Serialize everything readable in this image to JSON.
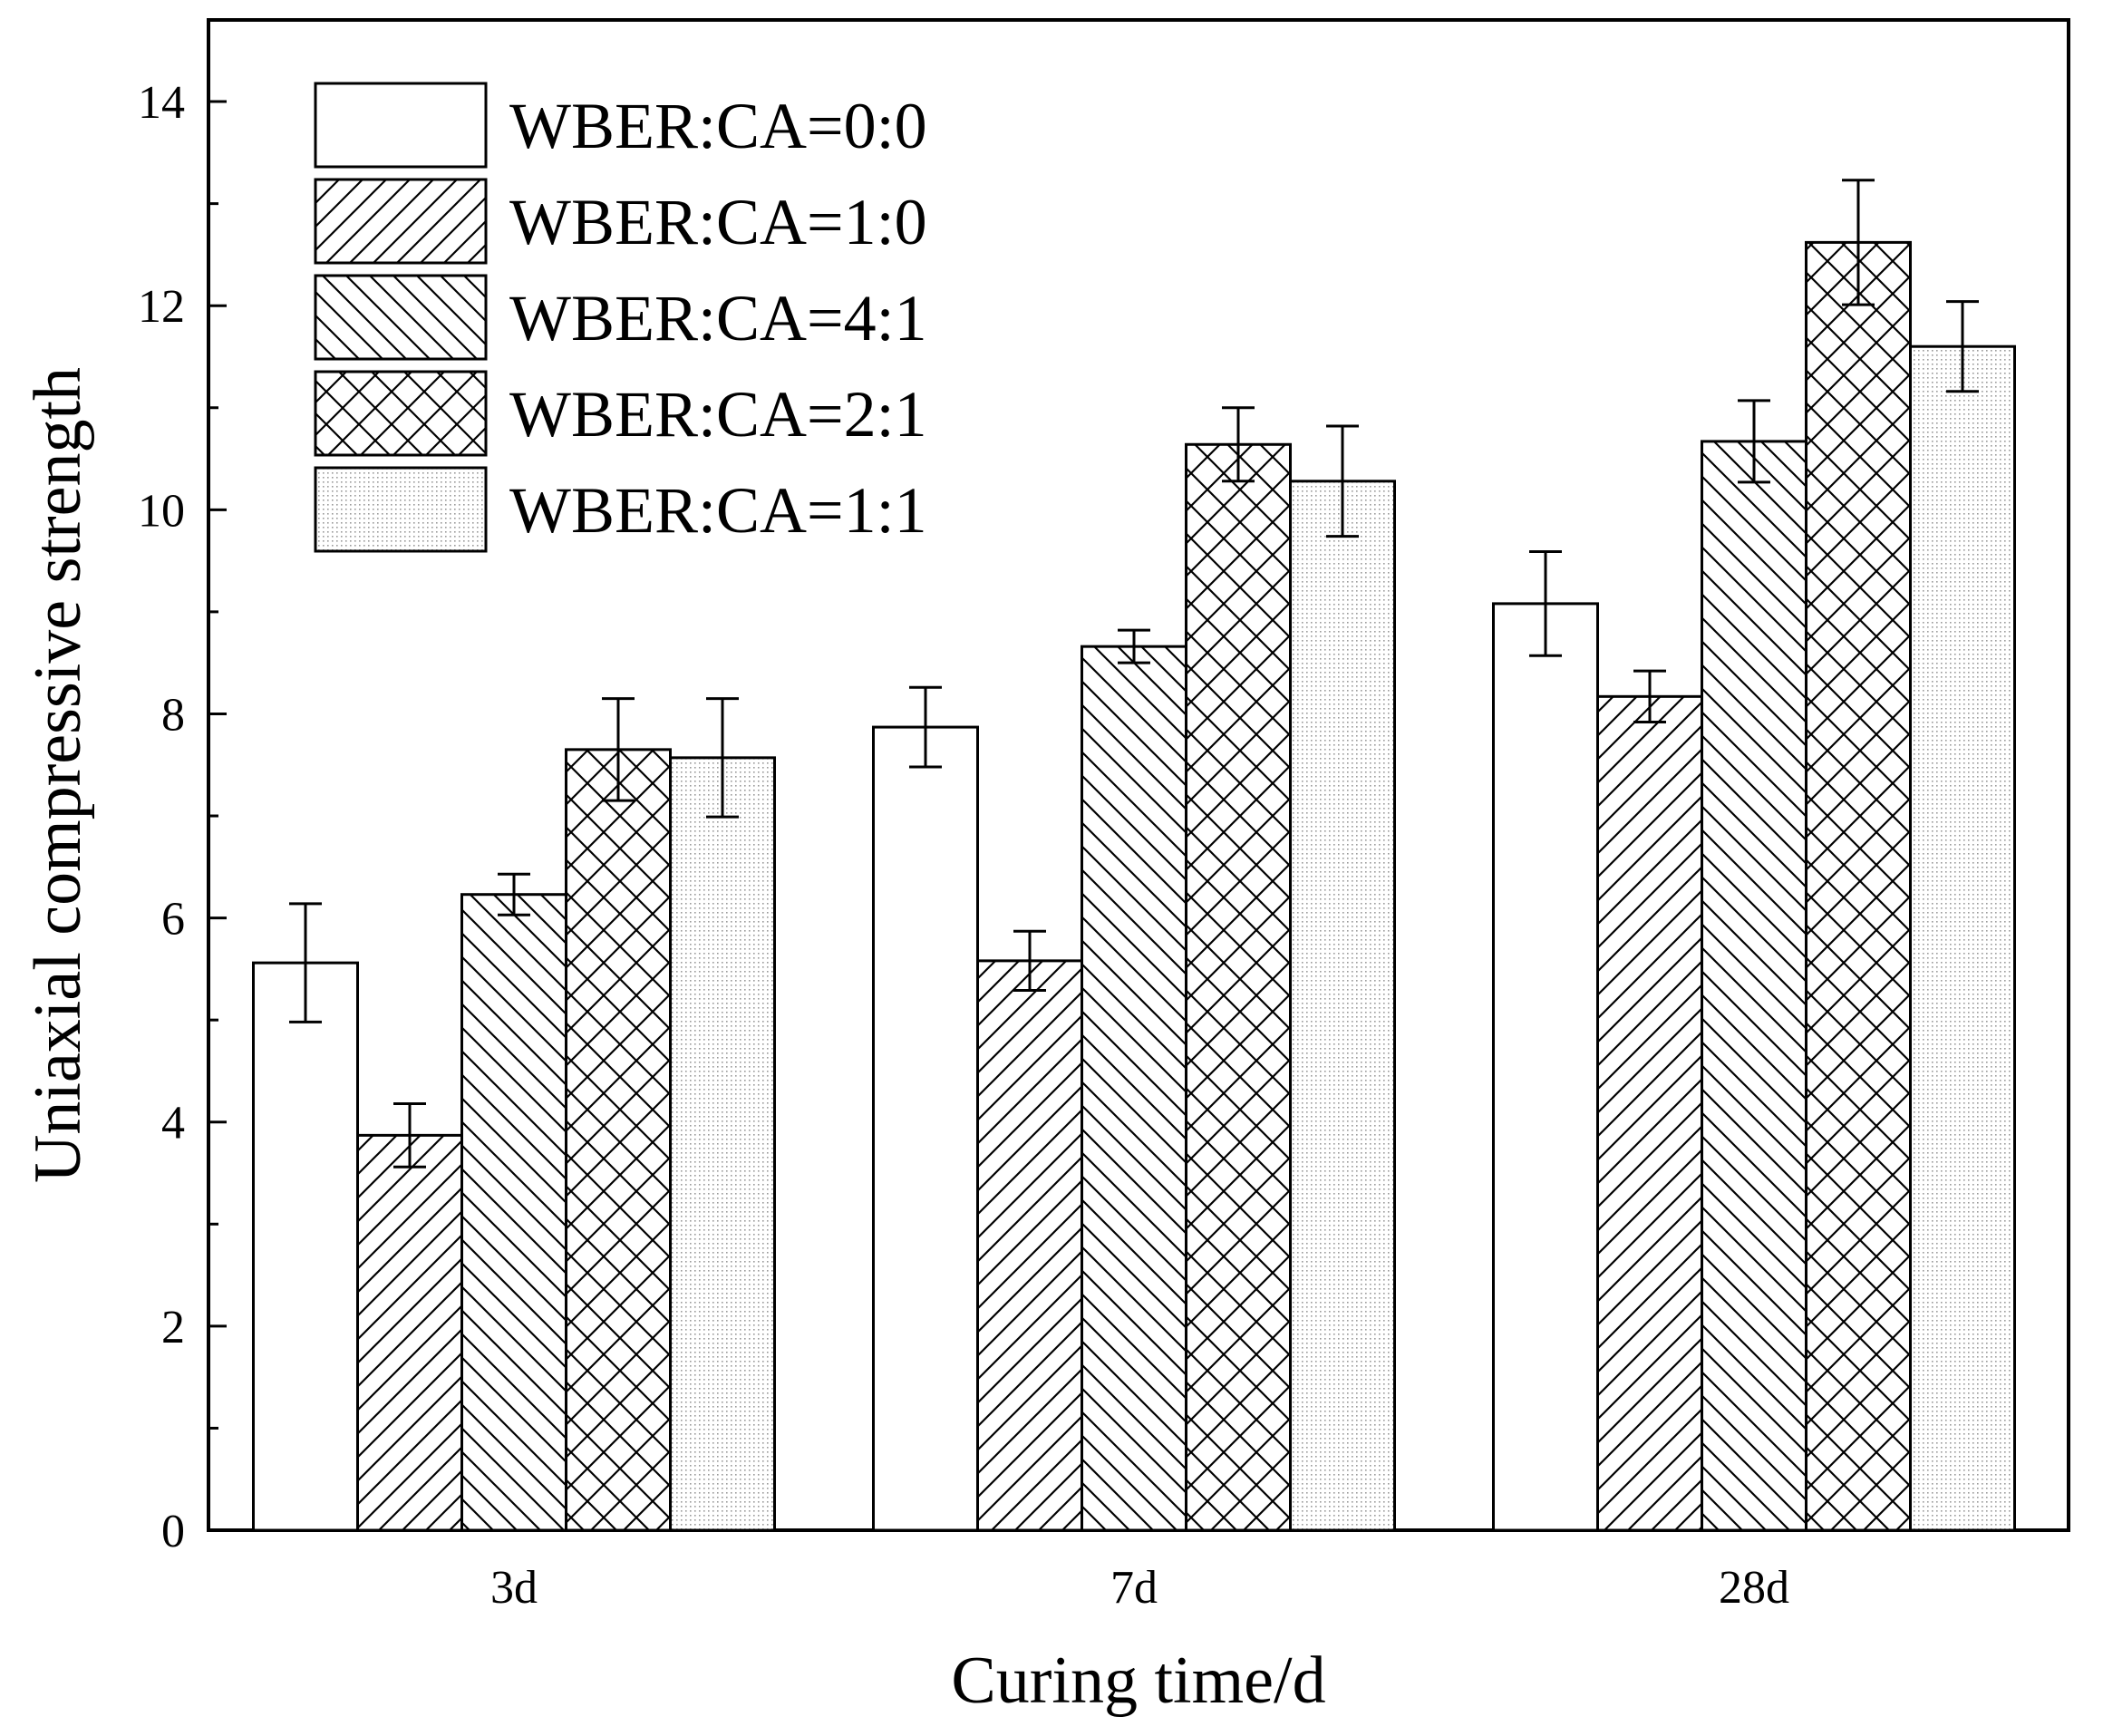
{
  "chart_data": {
    "type": "bar",
    "title": "",
    "xlabel": "Curing time/d",
    "ylabel": "Uniaxial compressive strength",
    "categories": [
      "3d",
      "7d",
      "28d"
    ],
    "ylim": [
      0,
      14.8
    ],
    "yticks": [
      0,
      2,
      4,
      6,
      8,
      10,
      12,
      14
    ],
    "error_bars": true,
    "legend_position": "top-left",
    "series": [
      {
        "name": "WBER:CA=0:0",
        "pattern": "plain",
        "values": [
          5.56,
          7.87,
          9.08
        ],
        "errors": [
          0.58,
          0.39,
          0.51
        ]
      },
      {
        "name": "WBER:CA=1:0",
        "pattern": "diagonal-forward",
        "values": [
          3.87,
          5.58,
          8.17
        ],
        "errors": [
          0.31,
          0.29,
          0.25
        ]
      },
      {
        "name": "WBER:CA=4:1",
        "pattern": "diagonal-backward",
        "values": [
          6.23,
          8.66,
          10.67
        ],
        "errors": [
          0.2,
          0.16,
          0.4
        ]
      },
      {
        "name": "WBER:CA=2:1",
        "pattern": "cross-hatch",
        "values": [
          7.65,
          10.64,
          12.62
        ],
        "errors": [
          0.5,
          0.36,
          0.61
        ]
      },
      {
        "name": "WBER:CA=1:1",
        "pattern": "dotted",
        "values": [
          7.57,
          10.28,
          11.6
        ],
        "errors": [
          0.58,
          0.54,
          0.44
        ]
      }
    ]
  }
}
